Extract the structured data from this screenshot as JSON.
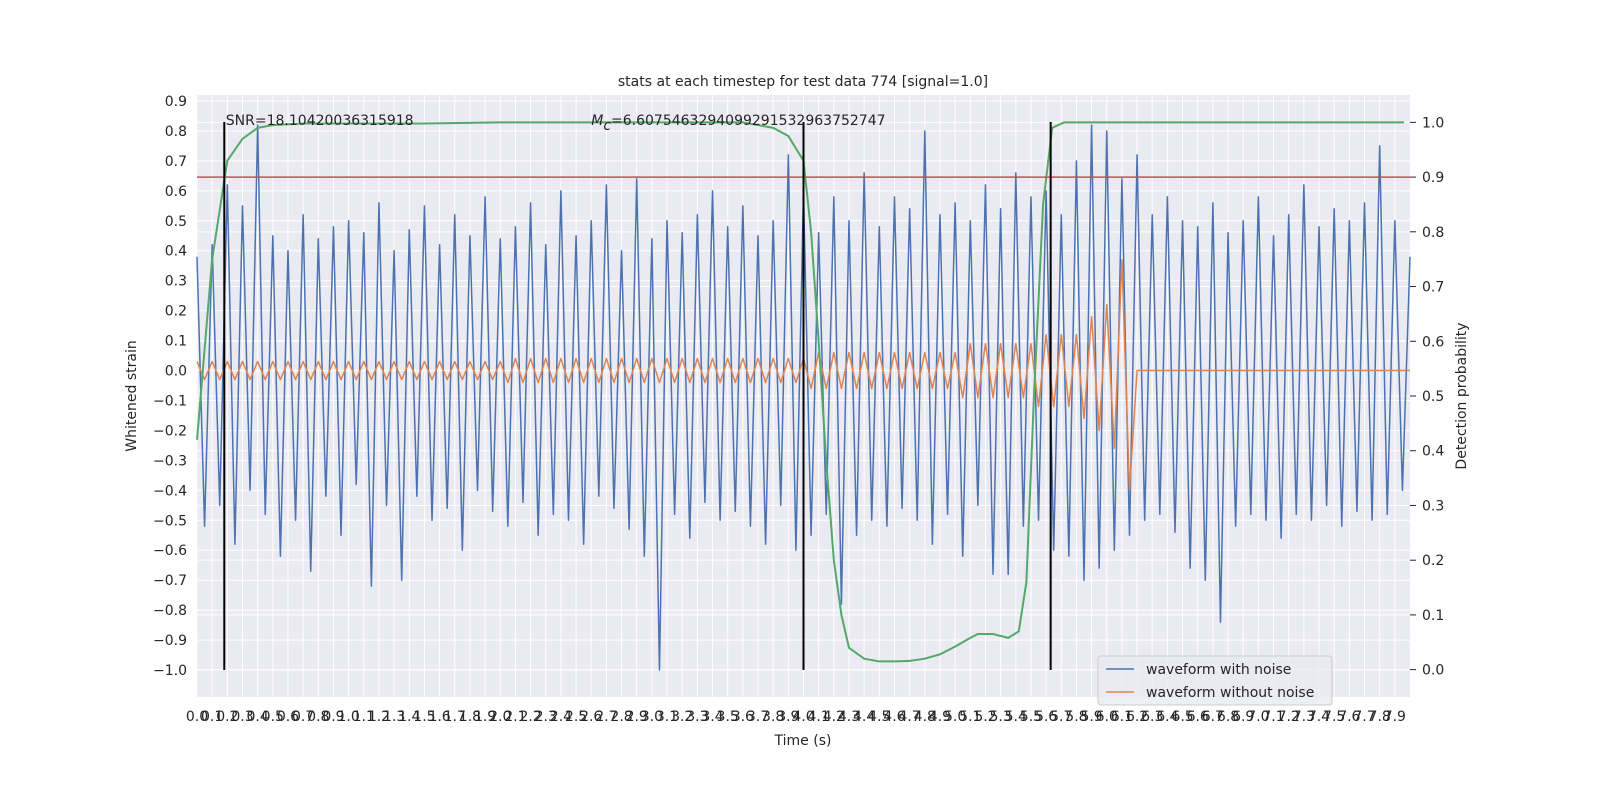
{
  "chart_data": {
    "type": "line",
    "title": "stats at each timestep for test data 774 [signal=1.0]",
    "xlabel": "Time (s)",
    "ylabel": "Whitened strain",
    "y2label": "Detection probability",
    "grid": true,
    "background": "#eaeaf2",
    "legend_position": "lower right",
    "xlim": [
      0,
      8
    ],
    "ylim": [
      -1.09,
      0.92
    ],
    "y2lim": [
      -0.05,
      1.05
    ],
    "xticks": [
      {
        "value": 0.0,
        "label": "0.0"
      },
      0.1,
      0.2,
      0.3,
      0.4,
      0.5,
      0.6,
      0.7,
      0.8,
      0.9,
      {
        "value": 1.0,
        "label": "1.0"
      },
      1.1,
      1.2,
      1.3,
      1.4,
      1.5,
      1.6,
      1.7,
      1.8,
      1.9,
      {
        "value": 2.0,
        "label": "2.0"
      },
      2.1,
      2.2,
      2.3,
      2.4,
      2.5,
      2.6,
      2.7,
      2.8,
      2.9,
      {
        "value": 3.0,
        "label": "3.0"
      },
      3.1,
      3.2,
      3.3,
      3.4,
      3.5,
      3.6,
      3.7,
      3.8,
      3.9,
      {
        "value": 4.0,
        "label": "4.0"
      },
      4.1,
      4.2,
      4.3,
      4.4,
      4.5,
      4.6,
      4.7,
      4.8,
      4.9,
      {
        "value": 5.0,
        "label": "5.0"
      },
      5.1,
      5.2,
      5.3,
      5.4,
      5.5,
      5.6,
      5.7,
      5.8,
      5.9,
      {
        "value": 6.0,
        "label": "6.0"
      },
      6.1,
      6.2,
      6.3,
      6.4,
      6.5,
      6.6,
      6.7,
      6.8,
      6.9,
      {
        "value": 7.0,
        "label": "7.0"
      },
      7.1,
      7.2,
      7.3,
      7.4,
      7.5,
      7.6,
      7.7,
      7.8,
      7.9
    ],
    "yticks": [
      {
        "value": -1.0,
        "label": "−1.0"
      },
      {
        "value": -0.9,
        "label": "−0.9"
      },
      {
        "value": -0.8,
        "label": "−0.8"
      },
      {
        "value": -0.7,
        "label": "−0.7"
      },
      {
        "value": -0.6,
        "label": "−0.6"
      },
      {
        "value": -0.5,
        "label": "−0.5"
      },
      {
        "value": -0.4,
        "label": "−0.4"
      },
      {
        "value": -0.3,
        "label": "−0.3"
      },
      {
        "value": -0.2,
        "label": "−0.2"
      },
      {
        "value": -0.1,
        "label": "−0.1"
      },
      {
        "value": 0.0,
        "label": "0.0"
      },
      0.1,
      0.2,
      0.3,
      0.4,
      0.5,
      0.6,
      0.7,
      0.8,
      0.9
    ],
    "y2ticks": [
      {
        "value": 0.0,
        "label": "0.0"
      },
      0.1,
      0.2,
      0.3,
      0.4,
      0.5,
      0.6,
      0.7,
      0.8,
      0.9,
      {
        "value": 1.0,
        "label": "1.0"
      }
    ],
    "x": [
      0.0,
      0.05,
      0.1,
      0.15,
      0.2,
      0.25,
      0.3,
      0.35,
      0.4,
      0.45,
      0.5,
      0.55,
      0.6,
      0.65,
      0.7,
      0.75,
      0.8,
      0.85,
      0.9,
      0.95,
      1.0,
      1.05,
      1.1,
      1.15,
      1.2,
      1.25,
      1.3,
      1.35,
      1.4,
      1.45,
      1.5,
      1.55,
      1.6,
      1.65,
      1.7,
      1.75,
      1.8,
      1.85,
      1.9,
      1.95,
      2.0,
      2.05,
      2.1,
      2.15,
      2.2,
      2.25,
      2.3,
      2.35,
      2.4,
      2.45,
      2.5,
      2.55,
      2.6,
      2.65,
      2.7,
      2.75,
      2.8,
      2.85,
      2.9,
      2.95,
      3.0,
      3.05,
      3.1,
      3.15,
      3.2,
      3.25,
      3.3,
      3.35,
      3.4,
      3.45,
      3.5,
      3.55,
      3.6,
      3.65,
      3.7,
      3.75,
      3.8,
      3.85,
      3.9,
      3.95,
      4.0,
      4.05,
      4.1,
      4.15,
      4.2,
      4.25,
      4.3,
      4.35,
      4.4,
      4.45,
      4.5,
      4.55,
      4.6,
      4.65,
      4.7,
      4.75,
      4.8,
      4.85,
      4.9,
      4.95,
      5.0,
      5.05,
      5.1,
      5.15,
      5.2,
      5.25,
      5.3,
      5.35,
      5.4,
      5.45,
      5.5,
      5.55,
      5.6,
      5.65,
      5.7,
      5.75,
      5.8,
      5.85,
      5.9,
      5.95,
      6.0,
      6.05,
      6.1,
      6.15,
      6.2,
      6.25,
      6.3,
      6.35,
      6.4,
      6.45,
      6.5,
      6.55,
      6.6,
      6.65,
      6.7,
      6.75,
      6.8,
      6.85,
      6.9,
      6.95,
      7.0,
      7.05,
      7.1,
      7.15,
      7.2,
      7.25,
      7.3,
      7.35,
      7.4,
      7.45,
      7.5,
      7.55,
      7.6,
      7.65,
      7.7,
      7.75,
      7.8,
      7.85,
      7.9,
      7.95,
      8.0
    ],
    "series": [
      {
        "name": "waveform with noise",
        "color": "#4c72b0",
        "values": [
          0.38,
          -0.52,
          0.42,
          -0.45,
          0.62,
          -0.58,
          0.55,
          -0.4,
          0.82,
          -0.48,
          0.45,
          -0.62,
          0.4,
          -0.5,
          0.52,
          -0.67,
          0.44,
          -0.42,
          0.48,
          -0.55,
          0.5,
          -0.38,
          0.46,
          -0.72,
          0.56,
          -0.45,
          0.4,
          -0.7,
          0.47,
          -0.42,
          0.55,
          -0.5,
          0.42,
          -0.46,
          0.52,
          -0.6,
          0.45,
          -0.4,
          0.58,
          -0.47,
          0.44,
          -0.52,
          0.48,
          -0.44,
          0.56,
          -0.55,
          0.42,
          -0.48,
          0.6,
          -0.5,
          0.45,
          -0.58,
          0.5,
          -0.42,
          0.62,
          -0.46,
          0.4,
          -0.53,
          0.64,
          -0.62,
          0.44,
          -1.0,
          0.5,
          -0.48,
          0.46,
          -0.56,
          0.52,
          -0.44,
          0.6,
          -0.5,
          0.48,
          -0.47,
          0.55,
          -0.52,
          0.45,
          -0.58,
          0.5,
          -0.45,
          0.72,
          -0.6,
          0.6,
          -0.55,
          0.46,
          -0.48,
          0.58,
          -0.78,
          0.5,
          -0.55,
          0.66,
          -0.5,
          0.48,
          -0.52,
          0.58,
          -0.46,
          0.54,
          -0.5,
          0.8,
          -0.58,
          0.52,
          -0.48,
          0.56,
          -0.62,
          0.5,
          -0.45,
          0.62,
          -0.68,
          0.54,
          -0.68,
          0.66,
          -0.52,
          0.58,
          -0.5,
          0.6,
          -0.6,
          0.52,
          -0.62,
          0.7,
          -0.7,
          0.82,
          -0.66,
          0.8,
          -0.6,
          0.64,
          -0.55,
          0.72,
          -0.5,
          0.52,
          -0.48,
          0.58,
          -0.54,
          0.5,
          -0.66,
          0.48,
          -0.7,
          0.56,
          -0.84,
          0.46,
          -0.52,
          0.5,
          -0.48,
          0.58,
          -0.5,
          0.45,
          -0.56,
          0.52,
          -0.48,
          0.62,
          -0.5,
          0.48,
          -0.45,
          0.54,
          -0.52,
          0.5,
          -0.47,
          0.56,
          -0.5,
          0.75,
          -0.48,
          0.5,
          -0.4,
          0.38
        ]
      },
      {
        "name": "waveform without noise",
        "color": "#dd8452",
        "values": [
          0.03,
          -0.03,
          0.03,
          -0.03,
          0.03,
          -0.03,
          0.03,
          -0.03,
          0.03,
          -0.03,
          0.03,
          -0.03,
          0.03,
          -0.03,
          0.03,
          -0.03,
          0.03,
          -0.03,
          0.03,
          -0.03,
          0.03,
          -0.03,
          0.03,
          -0.03,
          0.03,
          -0.03,
          0.03,
          -0.03,
          0.03,
          -0.03,
          0.03,
          -0.03,
          0.03,
          -0.03,
          0.03,
          -0.03,
          0.03,
          -0.03,
          0.03,
          -0.03,
          0.03,
          -0.04,
          0.04,
          -0.04,
          0.04,
          -0.04,
          0.04,
          -0.04,
          0.04,
          -0.04,
          0.04,
          -0.04,
          0.04,
          -0.04,
          0.04,
          -0.04,
          0.04,
          -0.04,
          0.04,
          -0.04,
          0.04,
          -0.04,
          0.04,
          -0.04,
          0.04,
          -0.04,
          0.04,
          -0.04,
          0.04,
          -0.04,
          0.04,
          -0.04,
          0.04,
          -0.04,
          0.04,
          -0.04,
          0.04,
          -0.04,
          0.04,
          -0.04,
          0.04,
          -0.06,
          0.06,
          -0.06,
          0.06,
          -0.06,
          0.06,
          -0.06,
          0.06,
          -0.06,
          0.06,
          -0.06,
          0.06,
          -0.06,
          0.06,
          -0.06,
          0.06,
          -0.06,
          0.06,
          -0.06,
          0.06,
          -0.09,
          0.09,
          -0.09,
          0.09,
          -0.09,
          0.09,
          -0.09,
          0.09,
          -0.09,
          0.09,
          -0.12,
          0.12,
          -0.12,
          0.12,
          -0.12,
          0.12,
          -0.16,
          0.18,
          -0.2,
          0.22,
          -0.26,
          0.37,
          -0.4,
          0,
          0,
          0,
          0,
          0,
          0,
          0,
          0,
          0,
          0,
          0,
          0,
          0,
          0,
          0,
          0,
          0,
          0,
          0,
          0,
          0,
          0,
          0,
          0,
          0,
          0,
          0,
          0,
          0,
          0,
          0,
          0,
          0,
          0,
          0,
          0,
          0
        ]
      }
    ],
    "detection_probability": {
      "color": "#55a868",
      "axis": "y2",
      "x": [
        0.0,
        0.1,
        0.2,
        0.3,
        0.4,
        0.5,
        0.7,
        1.0,
        1.5,
        2.0,
        3.0,
        3.6,
        3.8,
        3.9,
        4.0,
        4.05,
        4.1,
        4.15,
        4.2,
        4.25,
        4.3,
        4.4,
        4.5,
        4.6,
        4.7,
        4.8,
        4.9,
        5.0,
        5.1,
        5.15,
        5.25,
        5.35,
        5.42,
        5.47,
        5.52,
        5.58,
        5.64,
        5.72,
        6.0,
        7.0,
        7.96
      ],
      "values": [
        0.42,
        0.75,
        0.93,
        0.97,
        0.99,
        0.995,
        0.998,
        0.998,
        0.998,
        1.0,
        1.0,
        1.0,
        0.99,
        0.975,
        0.93,
        0.8,
        0.6,
        0.38,
        0.2,
        0.1,
        0.04,
        0.02,
        0.015,
        0.015,
        0.016,
        0.02,
        0.028,
        0.042,
        0.058,
        0.065,
        0.065,
        0.058,
        0.07,
        0.16,
        0.5,
        0.85,
        0.99,
        1.0,
        1.0,
        1.0,
        1.0
      ]
    },
    "threshold": {
      "value": 0.9,
      "color": "#c44e52",
      "axis": "y2"
    },
    "vlines": {
      "x": [
        0.18,
        4.0,
        5.63
      ],
      "ylim": [
        -1.0,
        0.83
      ],
      "color": "#000000"
    },
    "annotations": [
      {
        "text": "SNR=18.10420036315918",
        "x": 0.19,
        "y": 0.82
      },
      {
        "symbol": "M",
        "subscript": "c",
        "text": "=6.6075463294099291532963752747",
        "x": 2.6,
        "y": 0.82
      }
    ]
  }
}
